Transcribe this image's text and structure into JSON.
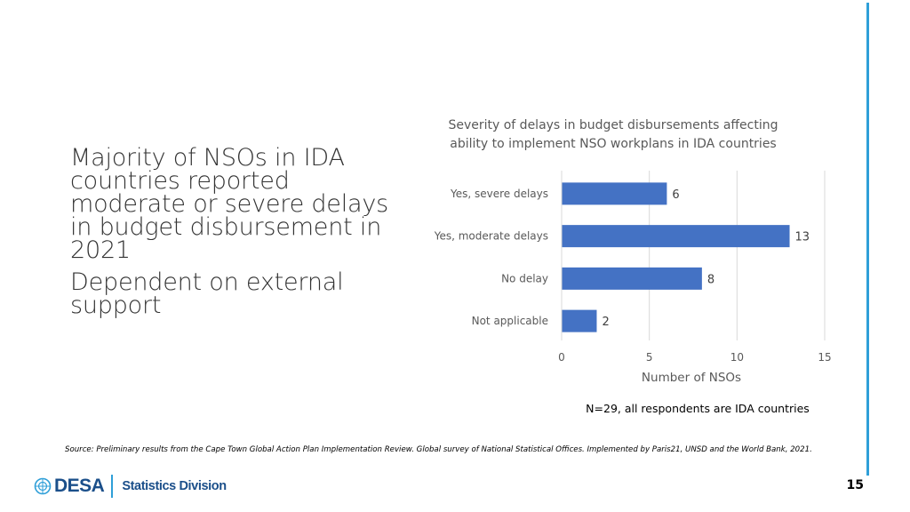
{
  "bullets": [
    "Majority of NSOs in IDA countries reported moderate or severe delays in budget disbursement in 2021",
    "Dependent on external support"
  ],
  "chart_data": {
    "type": "bar",
    "orientation": "horizontal",
    "title": "Severity of delays in budget disbursements affecting ability to implement NSO workplans in IDA countries",
    "categories": [
      "Yes, severe delays",
      "Yes, moderate delays",
      "No delay",
      "Not applicable"
    ],
    "values": [
      6,
      13,
      8,
      2
    ],
    "xlabel": "Number of NSOs",
    "ylabel": "",
    "xlim": [
      0,
      15
    ],
    "xticks": [
      0,
      5,
      10,
      15
    ],
    "grid": true,
    "bar_color": "#4472c4",
    "data_labels": true
  },
  "note": "N=29, all respondents are IDA countries",
  "source": "Source: Preliminary results from the  Cape Town Global Action Plan Implementation Review. Global survey of National Statistical Offices. Implemented by Paris21, UNSD and the World Bank, 2021.",
  "footer": {
    "logo_text": "DESA",
    "division": "Statistics Division",
    "page_number": "15",
    "accent_color": "#2f9fd8",
    "brand_color": "#1b4f8a"
  }
}
